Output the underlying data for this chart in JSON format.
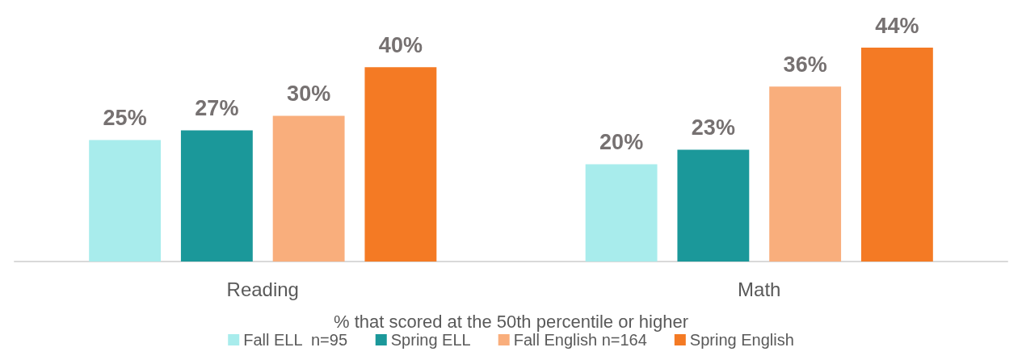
{
  "chart_data": {
    "type": "bar",
    "xlabel": "% that scored at the 50th percentile or higher",
    "categories": [
      "Reading",
      "Math"
    ],
    "series": [
      {
        "name": "Fall ELL  n=95",
        "color": "#a8ecec",
        "values": [
          25,
          20
        ],
        "value_labels": [
          "25%",
          "20%"
        ]
      },
      {
        "name": "Spring ELL",
        "color": "#1b989a",
        "values": [
          27,
          23
        ],
        "value_labels": [
          "27%",
          "23%"
        ]
      },
      {
        "name": "Fall English n=164",
        "color": "#f9ae7c",
        "values": [
          30,
          36
        ],
        "value_labels": [
          "30%",
          "36%"
        ]
      },
      {
        "name": "Spring English",
        "color": "#f47a24",
        "values": [
          40,
          44
        ],
        "value_labels": [
          "40%",
          "44%"
        ]
      }
    ],
    "legend": "bottom",
    "grid": false
  }
}
